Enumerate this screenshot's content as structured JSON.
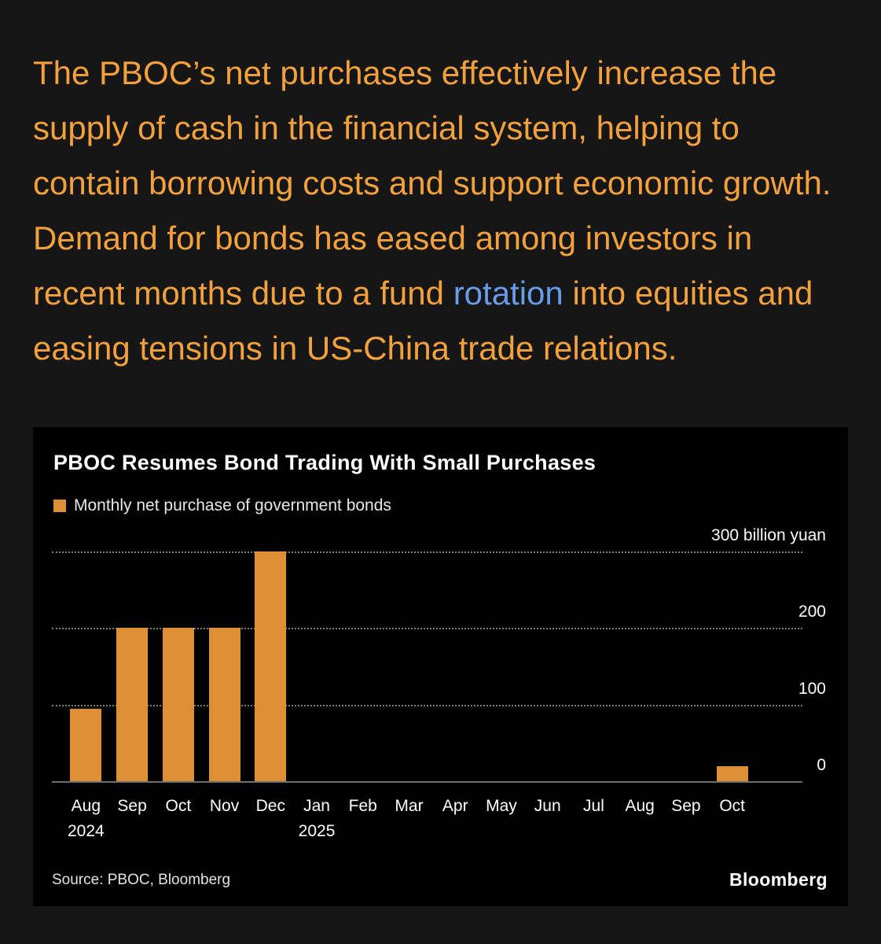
{
  "article": {
    "paragraph_pre": "The PBOC’s net purchases effectively increase the supply of cash in the financial system, helping to contain borrowing costs and support economic growth. Demand for bonds has eased among investors in recent months due to a fund ",
    "link_text": "rotation",
    "paragraph_post": " into equities and easing tensions in US-China trade relations."
  },
  "chart": {
    "title": "PBOC Resumes Bond Trading With Small Purchases",
    "legend_label": "Monthly net purchase of government bonds",
    "source": "Source: PBOC, Bloomberg",
    "brand": "Bloomberg"
  },
  "chart_data": {
    "type": "bar",
    "title": "PBOC Resumes Bond Trading With Small Purchases",
    "legend": [
      "Monthly net purchase of government bonds"
    ],
    "legend_position": "top-left",
    "categories": [
      "Aug",
      "Sep",
      "Oct",
      "Nov",
      "Dec",
      "Jan",
      "Feb",
      "Mar",
      "Apr",
      "May",
      "Jun",
      "Jul",
      "Aug",
      "Sep",
      "Oct"
    ],
    "year_labels": [
      {
        "index": 0,
        "label": "2024"
      },
      {
        "index": 5,
        "label": "2025"
      }
    ],
    "values": [
      95,
      200,
      200,
      200,
      300,
      0,
      0,
      0,
      0,
      0,
      0,
      0,
      0,
      0,
      20
    ],
    "ylabel": "billion yuan",
    "ylim": [
      0,
      300
    ],
    "yticks": [
      0,
      100,
      200,
      300
    ],
    "ytick_labels": [
      "0",
      "100",
      "200",
      "300 billion yuan"
    ],
    "grid": "dotted horizontal",
    "bar_color": "#dd9033"
  },
  "colors": {
    "page_bg": "#161616",
    "panel_bg": "#000000",
    "paragraph": "#f3a13c",
    "link": "#679ceb",
    "bar": "#dd9033",
    "text": "#ffffff",
    "grid": "#7e7e7e"
  }
}
